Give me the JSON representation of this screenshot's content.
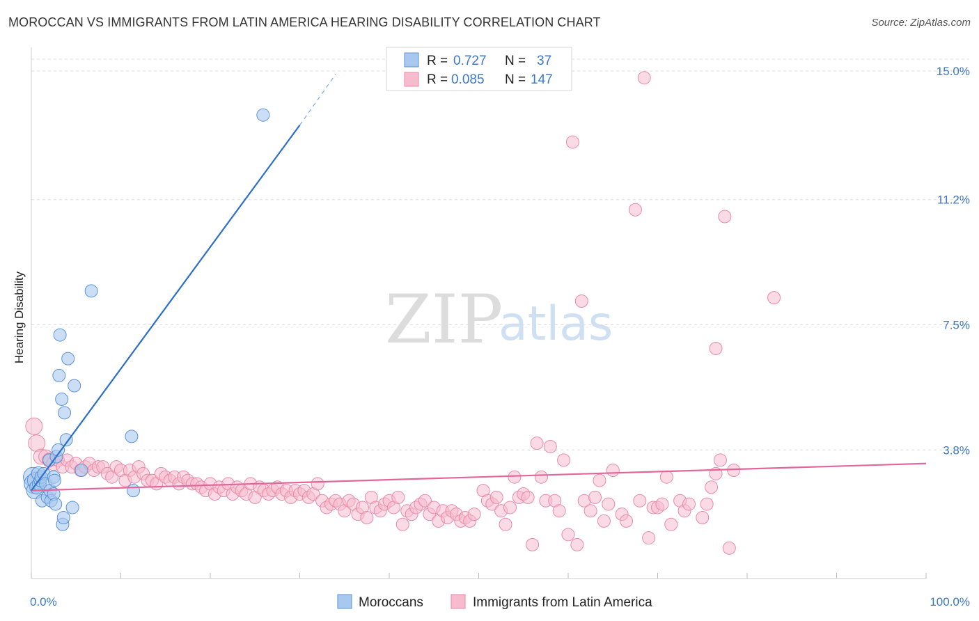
{
  "title": "MOROCCAN VS IMMIGRANTS FROM LATIN AMERICA HEARING DISABILITY CORRELATION CHART",
  "source": "Source: ZipAtlas.com",
  "watermark": {
    "zip": "ZIP",
    "atlas": "atlas"
  },
  "colors": {
    "blue_fill": "#a9c8ef",
    "blue_stroke": "#5b93d6",
    "blue_line": "#2a6fcb",
    "pink_fill": "#f6bccd",
    "pink_stroke": "#e88aa8",
    "pink_line": "#e2669a",
    "tick_blue": "#3b78c9",
    "grid": "#dddddd"
  },
  "legend": {
    "rows": [
      {
        "r_label": "R =",
        "r_value": "0.727",
        "n_label": "N =",
        "n_value": "37",
        "series": "blue"
      },
      {
        "r_label": "R =",
        "r_value": "0.085",
        "n_label": "N =",
        "n_value": "147",
        "series": "pink"
      }
    ]
  },
  "chart_data": {
    "type": "scatter",
    "title": "MOROCCAN VS IMMIGRANTS FROM LATIN AMERICA HEARING DISABILITY CORRELATION CHART",
    "xlabel": "",
    "ylabel": "Hearing Disability",
    "xlim": [
      0,
      100
    ],
    "ylim": [
      0,
      15.7
    ],
    "x_tick_labels": [
      "0.0%",
      "100.0%"
    ],
    "y_ticks": [
      3.8,
      7.5,
      11.2,
      15.0
    ],
    "y_tick_labels": [
      "3.8%",
      "7.5%",
      "11.2%",
      "15.0%"
    ],
    "grid": true,
    "legend_position": "top-center",
    "series": [
      {
        "name": "Moroccans",
        "color": "blue",
        "R": 0.727,
        "N": 37,
        "trend": {
          "x0": 0,
          "y0": 2.6,
          "x1": 30,
          "y1": 13.4,
          "dash_to_x": 34,
          "dash_to_y": 14.9
        },
        "points": [
          [
            0.2,
            3.0,
            14
          ],
          [
            0.3,
            2.8,
            14
          ],
          [
            0.4,
            2.6,
            12
          ],
          [
            0.5,
            2.9,
            12
          ],
          [
            0.6,
            2.7,
            10
          ],
          [
            0.8,
            3.1,
            10
          ],
          [
            0.9,
            2.8,
            10
          ],
          [
            1.0,
            2.9,
            9
          ],
          [
            1.1,
            3.0,
            9
          ],
          [
            1.2,
            2.3,
            9
          ],
          [
            1.4,
            3.1,
            9
          ],
          [
            1.6,
            2.8,
            9
          ],
          [
            1.8,
            2.4,
            9
          ],
          [
            2.0,
            3.5,
            9
          ],
          [
            2.1,
            2.6,
            9
          ],
          [
            2.2,
            2.3,
            9
          ],
          [
            2.5,
            3.0,
            9
          ],
          [
            2.5,
            2.5,
            9
          ],
          [
            2.6,
            2.9,
            9
          ],
          [
            2.8,
            3.6,
            9
          ],
          [
            2.7,
            2.2,
            9
          ],
          [
            3.0,
            3.8,
            9
          ],
          [
            3.1,
            6.0,
            9
          ],
          [
            3.2,
            7.2,
            9
          ],
          [
            3.4,
            5.3,
            9
          ],
          [
            3.5,
            1.6,
            9
          ],
          [
            3.6,
            1.8,
            9
          ],
          [
            3.7,
            4.9,
            9
          ],
          [
            3.9,
            4.1,
            9
          ],
          [
            4.1,
            6.5,
            9
          ],
          [
            4.6,
            2.1,
            9
          ],
          [
            4.8,
            5.7,
            9
          ],
          [
            5.6,
            3.2,
            9
          ],
          [
            6.7,
            8.5,
            9
          ],
          [
            11.2,
            4.2,
            9
          ],
          [
            11.4,
            2.6,
            9
          ],
          [
            25.9,
            13.7,
            9
          ]
        ]
      },
      {
        "name": "Immigrants from Latin America",
        "color": "pink",
        "R": 0.085,
        "N": 147,
        "trend": {
          "x0": 0,
          "y0": 2.6,
          "x1": 100,
          "y1": 3.4
        },
        "points": [
          [
            0.3,
            4.5,
            12
          ],
          [
            0.6,
            4.0,
            12
          ],
          [
            1.1,
            3.6,
            11
          ],
          [
            1.6,
            3.6,
            10
          ],
          [
            2.0,
            3.5,
            10
          ],
          [
            2.5,
            3.4,
            10
          ],
          [
            3.0,
            3.5,
            9
          ],
          [
            3.5,
            3.3,
            9
          ],
          [
            4.0,
            3.5,
            9
          ],
          [
            4.5,
            3.3,
            9
          ],
          [
            5.0,
            3.4,
            9
          ],
          [
            5.5,
            3.2,
            9
          ],
          [
            6.0,
            3.3,
            9
          ],
          [
            6.5,
            3.4,
            9
          ],
          [
            7.0,
            3.2,
            9
          ],
          [
            7.5,
            3.3,
            9
          ],
          [
            8.0,
            3.3,
            9
          ],
          [
            8.5,
            3.1,
            9
          ],
          [
            9.0,
            3.0,
            9
          ],
          [
            9.5,
            3.3,
            9
          ],
          [
            10.0,
            3.2,
            9
          ],
          [
            10.5,
            2.9,
            9
          ],
          [
            11.0,
            3.2,
            9
          ],
          [
            11.5,
            3.0,
            9
          ],
          [
            12.0,
            3.3,
            9
          ],
          [
            12.5,
            3.1,
            9
          ],
          [
            13.0,
            2.9,
            9
          ],
          [
            13.5,
            2.9,
            9
          ],
          [
            14.0,
            2.8,
            9
          ],
          [
            14.5,
            3.1,
            9
          ],
          [
            15.0,
            3.0,
            9
          ],
          [
            15.5,
            2.9,
            9
          ],
          [
            16.0,
            3.0,
            9
          ],
          [
            16.5,
            2.8,
            9
          ],
          [
            17.0,
            3.0,
            9
          ],
          [
            17.5,
            2.9,
            9
          ],
          [
            18.0,
            2.8,
            9
          ],
          [
            18.5,
            2.8,
            9
          ],
          [
            19.0,
            2.7,
            9
          ],
          [
            19.5,
            2.6,
            9
          ],
          [
            20.0,
            2.8,
            9
          ],
          [
            20.5,
            2.5,
            9
          ],
          [
            21.0,
            2.7,
            9
          ],
          [
            21.5,
            2.6,
            9
          ],
          [
            22.0,
            2.8,
            9
          ],
          [
            22.5,
            2.5,
            9
          ],
          [
            23.0,
            2.7,
            9
          ],
          [
            23.5,
            2.6,
            9
          ],
          [
            24.0,
            2.5,
            9
          ],
          [
            24.5,
            2.8,
            9
          ],
          [
            25.0,
            2.4,
            9
          ],
          [
            25.5,
            2.7,
            9
          ],
          [
            26.0,
            2.6,
            9
          ],
          [
            26.5,
            2.5,
            9
          ],
          [
            27.0,
            2.6,
            9
          ],
          [
            27.5,
            2.7,
            9
          ],
          [
            28.0,
            2.5,
            9
          ],
          [
            28.5,
            2.6,
            9
          ],
          [
            29.0,
            2.4,
            9
          ],
          [
            29.5,
            2.6,
            9
          ],
          [
            30.0,
            2.5,
            9
          ],
          [
            30.5,
            2.6,
            9
          ],
          [
            31.0,
            2.4,
            9
          ],
          [
            31.5,
            2.5,
            9
          ],
          [
            32.0,
            2.8,
            9
          ],
          [
            32.5,
            2.3,
            9
          ],
          [
            33.0,
            2.1,
            9
          ],
          [
            33.5,
            2.2,
            9
          ],
          [
            34.0,
            2.3,
            9
          ],
          [
            34.5,
            2.2,
            9
          ],
          [
            35.0,
            2.0,
            9
          ],
          [
            35.5,
            2.3,
            9
          ],
          [
            36.0,
            2.2,
            9
          ],
          [
            36.5,
            1.9,
            9
          ],
          [
            37.0,
            2.1,
            9
          ],
          [
            37.5,
            1.8,
            9
          ],
          [
            38.0,
            2.4,
            9
          ],
          [
            38.5,
            2.1,
            9
          ],
          [
            39.0,
            2.0,
            9
          ],
          [
            39.5,
            2.2,
            9
          ],
          [
            40.0,
            2.3,
            9
          ],
          [
            40.5,
            2.1,
            9
          ],
          [
            41.0,
            2.4,
            9
          ],
          [
            41.5,
            1.6,
            9
          ],
          [
            42.0,
            2.0,
            9
          ],
          [
            42.5,
            1.9,
            9
          ],
          [
            43.0,
            2.1,
            9
          ],
          [
            43.5,
            2.2,
            9
          ],
          [
            44.0,
            2.3,
            9
          ],
          [
            44.5,
            1.9,
            9
          ],
          [
            45.0,
            2.1,
            9
          ],
          [
            45.5,
            1.7,
            9
          ],
          [
            46.0,
            2.0,
            9
          ],
          [
            46.5,
            1.8,
            9
          ],
          [
            47.0,
            2.0,
            9
          ],
          [
            47.5,
            1.9,
            9
          ],
          [
            48.0,
            1.7,
            9
          ],
          [
            48.5,
            1.8,
            9
          ],
          [
            49.0,
            1.7,
            9
          ],
          [
            49.5,
            1.9,
            9
          ],
          [
            50.5,
            2.6,
            9
          ],
          [
            51.0,
            2.3,
            9
          ],
          [
            51.5,
            2.2,
            9
          ],
          [
            52.0,
            2.4,
            9
          ],
          [
            52.5,
            2.0,
            9
          ],
          [
            53.0,
            1.6,
            9
          ],
          [
            53.5,
            2.1,
            9
          ],
          [
            54.0,
            3.0,
            9
          ],
          [
            54.5,
            2.4,
            9
          ],
          [
            55.0,
            2.5,
            9
          ],
          [
            55.5,
            2.4,
            9
          ],
          [
            56.0,
            1.0,
            9
          ],
          [
            56.5,
            4.0,
            9
          ],
          [
            57.0,
            3.0,
            9
          ],
          [
            57.5,
            2.3,
            9
          ],
          [
            58.0,
            3.9,
            9
          ],
          [
            58.5,
            2.3,
            9
          ],
          [
            59.0,
            2.0,
            9
          ],
          [
            59.5,
            3.5,
            9
          ],
          [
            60.0,
            1.3,
            9
          ],
          [
            60.5,
            12.9,
            9
          ],
          [
            61.0,
            1.0,
            9
          ],
          [
            61.5,
            8.2,
            9
          ],
          [
            61.8,
            2.3,
            9
          ],
          [
            62.5,
            2.0,
            9
          ],
          [
            63.0,
            2.4,
            9
          ],
          [
            63.5,
            2.9,
            9
          ],
          [
            64.0,
            1.7,
            9
          ],
          [
            64.5,
            2.2,
            9
          ],
          [
            65.0,
            3.2,
            9
          ],
          [
            66.0,
            1.9,
            9
          ],
          [
            66.5,
            1.7,
            9
          ],
          [
            67.5,
            10.9,
            9
          ],
          [
            68.0,
            2.3,
            9
          ],
          [
            68.5,
            14.8,
            9
          ],
          [
            69.0,
            1.2,
            9
          ],
          [
            69.5,
            2.1,
            9
          ],
          [
            70.0,
            2.1,
            9
          ],
          [
            70.5,
            2.2,
            9
          ],
          [
            71.0,
            3.0,
            9
          ],
          [
            71.5,
            1.6,
            9
          ],
          [
            72.5,
            2.3,
            9
          ],
          [
            73.0,
            2.0,
            9
          ],
          [
            73.5,
            2.2,
            9
          ],
          [
            75.0,
            1.8,
            9
          ],
          [
            75.5,
            2.2,
            9
          ],
          [
            76.0,
            2.7,
            9
          ],
          [
            76.5,
            3.1,
            9
          ],
          [
            77.0,
            3.5,
            9
          ],
          [
            76.5,
            6.8,
            9
          ],
          [
            77.5,
            10.7,
            9
          ],
          [
            78.0,
            0.9,
            9
          ],
          [
            78.5,
            3.2,
            9
          ],
          [
            83.0,
            8.3,
            9
          ]
        ]
      }
    ]
  },
  "bottom_legend": {
    "items": [
      {
        "label": "Moroccans",
        "series": "blue"
      },
      {
        "label": "Immigrants from Latin America",
        "series": "pink"
      }
    ]
  }
}
